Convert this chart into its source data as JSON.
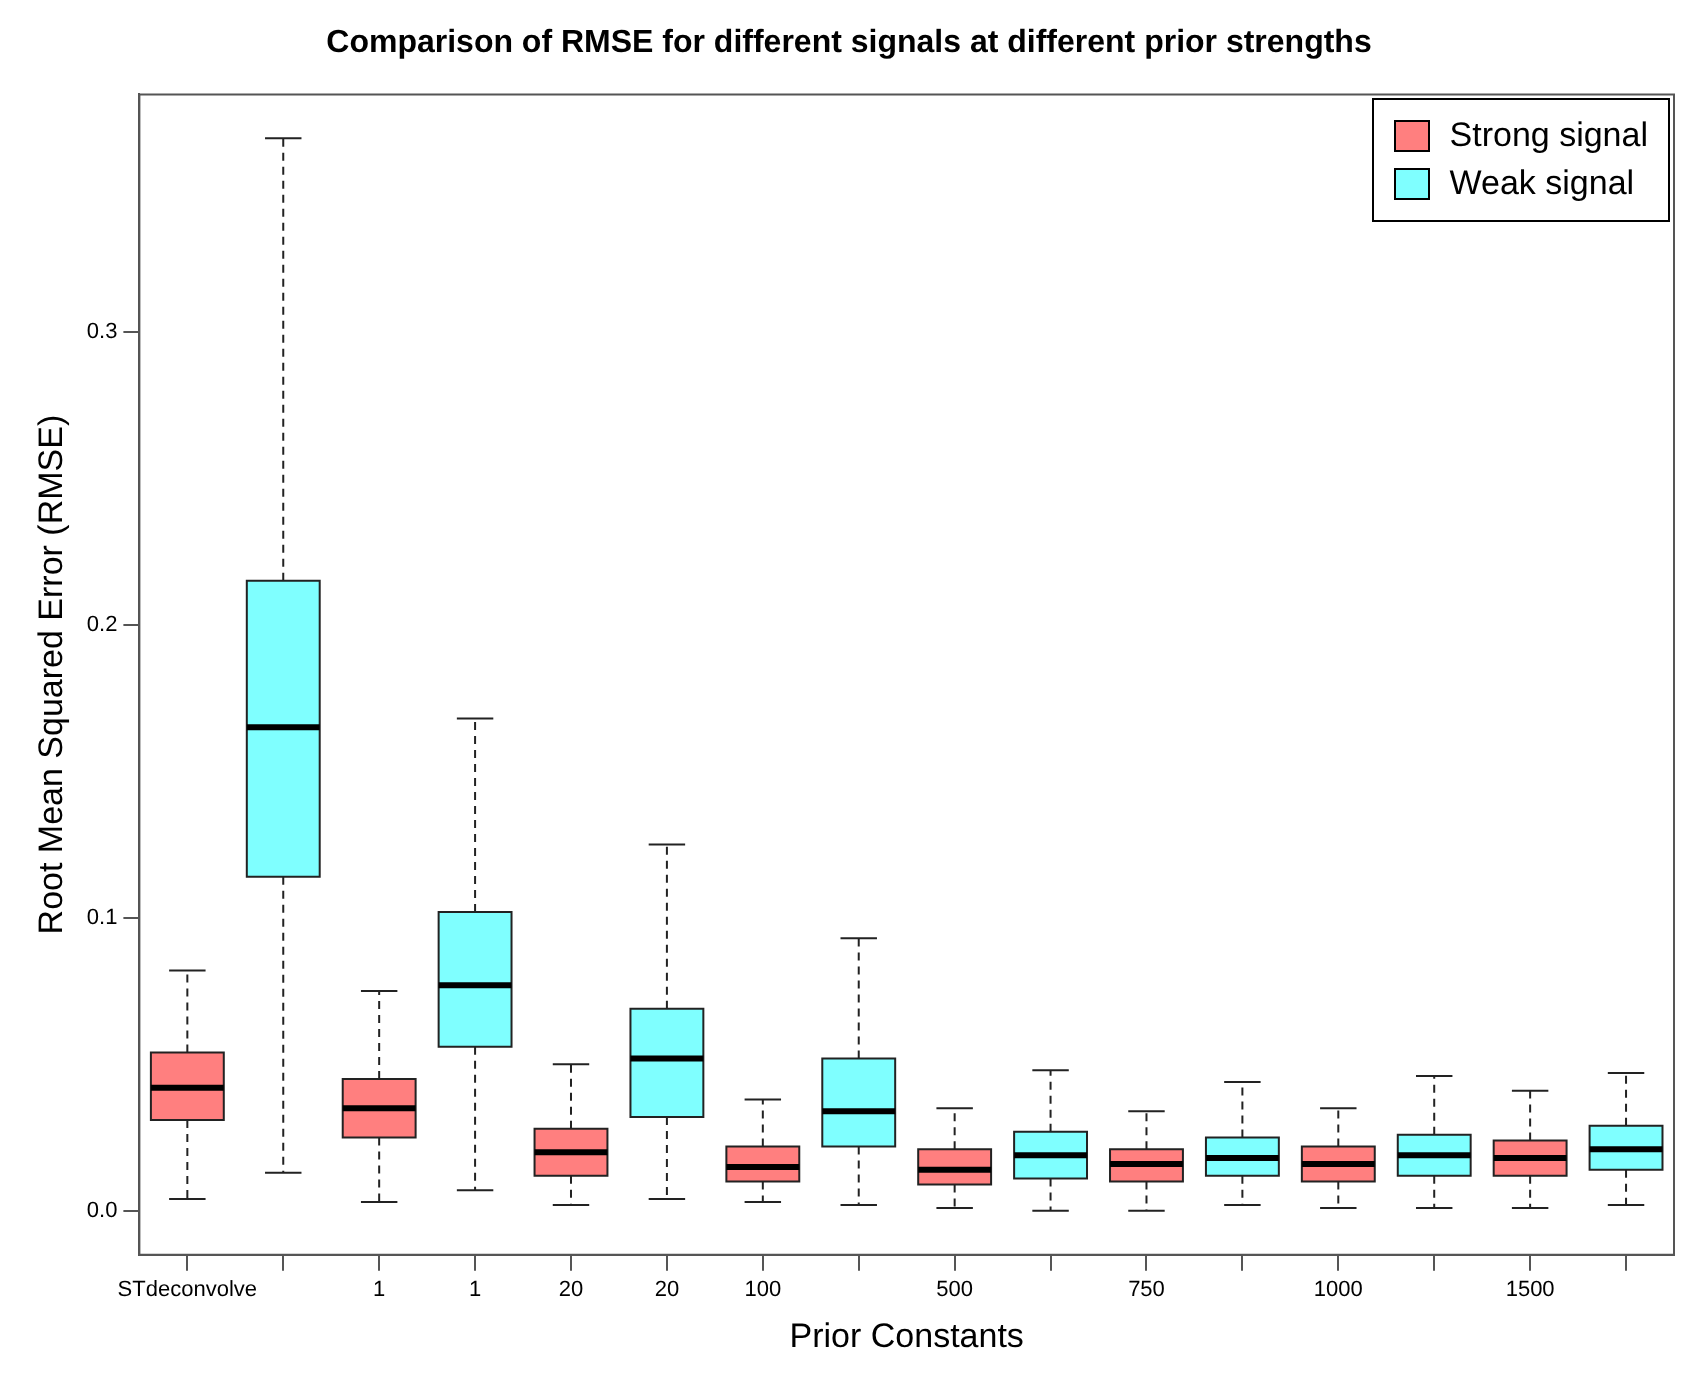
{
  "chart_data": {
    "type": "box",
    "title": "Comparison of RMSE for different signals at different prior strengths",
    "xlabel": "Prior Constants",
    "ylabel": "Root Mean Squared Error (RMSE)",
    "categories": [
      "STdeconvolve",
      null,
      "1",
      "1",
      "20",
      "20",
      "100",
      null,
      "500",
      null,
      "750",
      null,
      "1000",
      null,
      "1500",
      null
    ],
    "ylim": [
      -0.015,
      0.381
    ],
    "yticks": [
      {
        "value": 0,
        "label": "0.0"
      },
      {
        "value": 0.1,
        "label": "0.1"
      },
      {
        "value": 0.2,
        "label": "0.2"
      },
      {
        "value": 0.3,
        "label": "0.3"
      }
    ],
    "legend": "top right",
    "grid": false,
    "series": [
      {
        "name": "Strong signal",
        "color": "#ff7f7f",
        "boxes": [
          {
            "low": 0.004,
            "q1": 0.031,
            "median": 0.042,
            "q3": 0.054,
            "high": 0.082
          },
          null,
          {
            "low": 0.003,
            "q1": 0.025,
            "median": 0.035,
            "q3": 0.045,
            "high": 0.075
          },
          null,
          {
            "low": 0.002,
            "q1": 0.012,
            "median": 0.02,
            "q3": 0.028,
            "high": 0.05
          },
          null,
          {
            "low": 0.003,
            "q1": 0.01,
            "median": 0.015,
            "q3": 0.022,
            "high": 0.038
          },
          null,
          {
            "low": 0.001,
            "q1": 0.009,
            "median": 0.014,
            "q3": 0.021,
            "high": 0.035
          },
          null,
          {
            "low": 0.0,
            "q1": 0.01,
            "median": 0.016,
            "q3": 0.021,
            "high": 0.034
          },
          null,
          {
            "low": 0.001,
            "q1": 0.01,
            "median": 0.016,
            "q3": 0.022,
            "high": 0.035
          },
          null,
          {
            "low": 0.001,
            "q1": 0.012,
            "median": 0.018,
            "q3": 0.024,
            "high": 0.041
          },
          null
        ]
      },
      {
        "name": "Weak signal",
        "color": "#7fffff",
        "boxes": [
          null,
          {
            "low": 0.013,
            "q1": 0.114,
            "median": 0.165,
            "q3": 0.215,
            "high": 0.366
          },
          null,
          {
            "low": 0.007,
            "q1": 0.056,
            "median": 0.077,
            "q3": 0.102,
            "high": 0.168
          },
          null,
          {
            "low": 0.004,
            "q1": 0.032,
            "median": 0.052,
            "q3": 0.069,
            "high": 0.125
          },
          null,
          {
            "low": 0.002,
            "q1": 0.022,
            "median": 0.034,
            "q3": 0.052,
            "high": 0.093
          },
          null,
          {
            "low": 0.0,
            "q1": 0.011,
            "median": 0.019,
            "q3": 0.027,
            "high": 0.048
          },
          null,
          {
            "low": 0.002,
            "q1": 0.012,
            "median": 0.018,
            "q3": 0.025,
            "high": 0.044
          },
          null,
          {
            "low": 0.001,
            "q1": 0.012,
            "median": 0.019,
            "q3": 0.026,
            "high": 0.046
          },
          null,
          {
            "low": 0.002,
            "q1": 0.014,
            "median": 0.021,
            "q3": 0.029,
            "high": 0.047
          }
        ]
      }
    ]
  }
}
